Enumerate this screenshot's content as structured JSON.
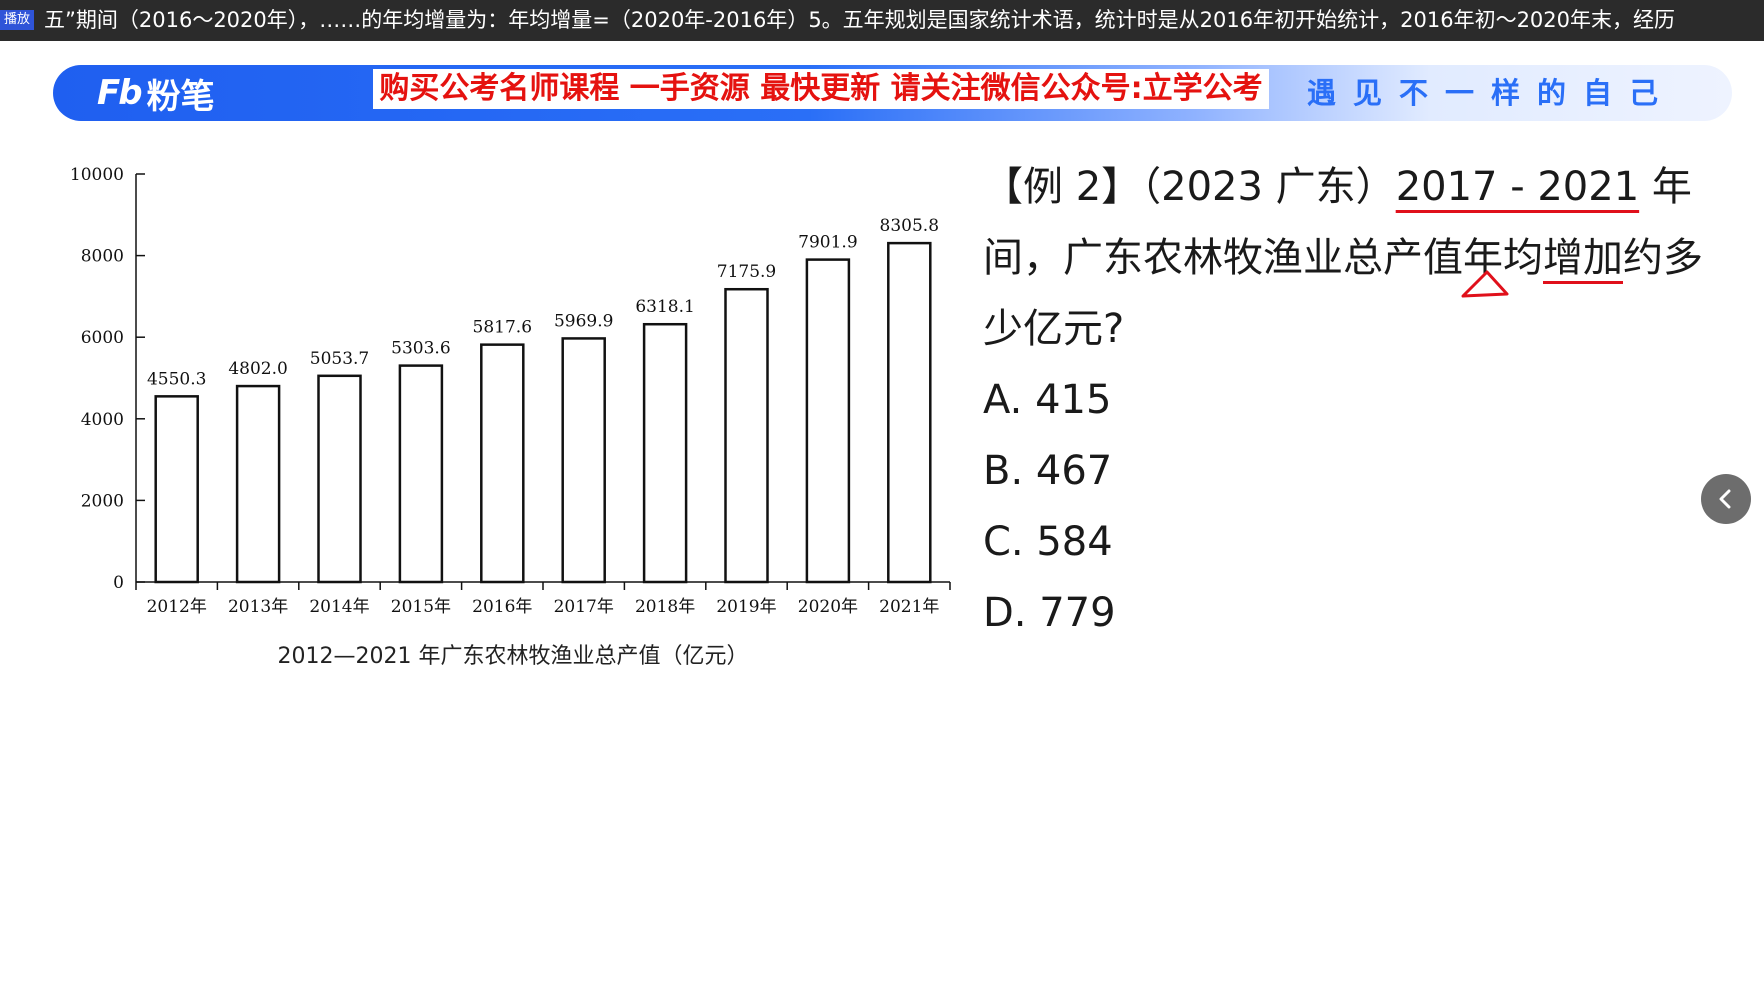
{
  "ticker": {
    "badge": "播放",
    "text": "五”期间（2016～2020年），……的年均增量为：年均增量=（2020年-2016年）5。五年规划是国家统计术语，统计时是从2016年初开始统计，2016年初～2020年末，经历"
  },
  "banner": {
    "logo_mark": "Fb",
    "logo_text": "粉笔",
    "promo": "购买公考名师课程 一手资源 最快更新 请关注微信公众号:立学公考",
    "slogan": "遇见不一样的自己"
  },
  "chart_data": {
    "type": "bar",
    "categories": [
      "2012年",
      "2013年",
      "2014年",
      "2015年",
      "2016年",
      "2017年",
      "2018年",
      "2019年",
      "2020年",
      "2021年"
    ],
    "values": [
      4550.3,
      4802.0,
      5053.7,
      5303.6,
      5817.6,
      5969.9,
      6318.1,
      7175.9,
      7901.9,
      8305.8
    ],
    "value_labels": [
      "4550.3",
      "4802.0",
      "5053.7",
      "5303.6",
      "5817.6",
      "5969.9",
      "6318.1",
      "7175.9",
      "7901.9",
      "8305.8"
    ],
    "y_ticks": [
      0,
      2000,
      4000,
      6000,
      8000,
      10000
    ],
    "ylim": [
      0,
      10000
    ],
    "caption": "2012—2021 年广东农林牧渔业总产值（亿元）",
    "grid": false,
    "bar_fill": "#ffffff",
    "bar_stroke": "#111111"
  },
  "question": {
    "prefix": "【例 2】（2023 广东）",
    "years": "2017 - 2021",
    "after_years": " 年间，广东农林牧渔业总产值年",
    "marked_1": "均",
    "middle": "增",
    "marked_2": "加",
    "suffix": "约多少亿元?",
    "options": [
      {
        "label": "A. 415"
      },
      {
        "label": "B. 467"
      },
      {
        "label": "C. 584"
      },
      {
        "label": "D. 779"
      }
    ]
  },
  "nav": {
    "icon": "chevron-left-icon",
    "glyph": "‹"
  },
  "colors": {
    "annotation": "#e0101b",
    "accent": "#2a6ff7",
    "promo": "#e5120f"
  }
}
